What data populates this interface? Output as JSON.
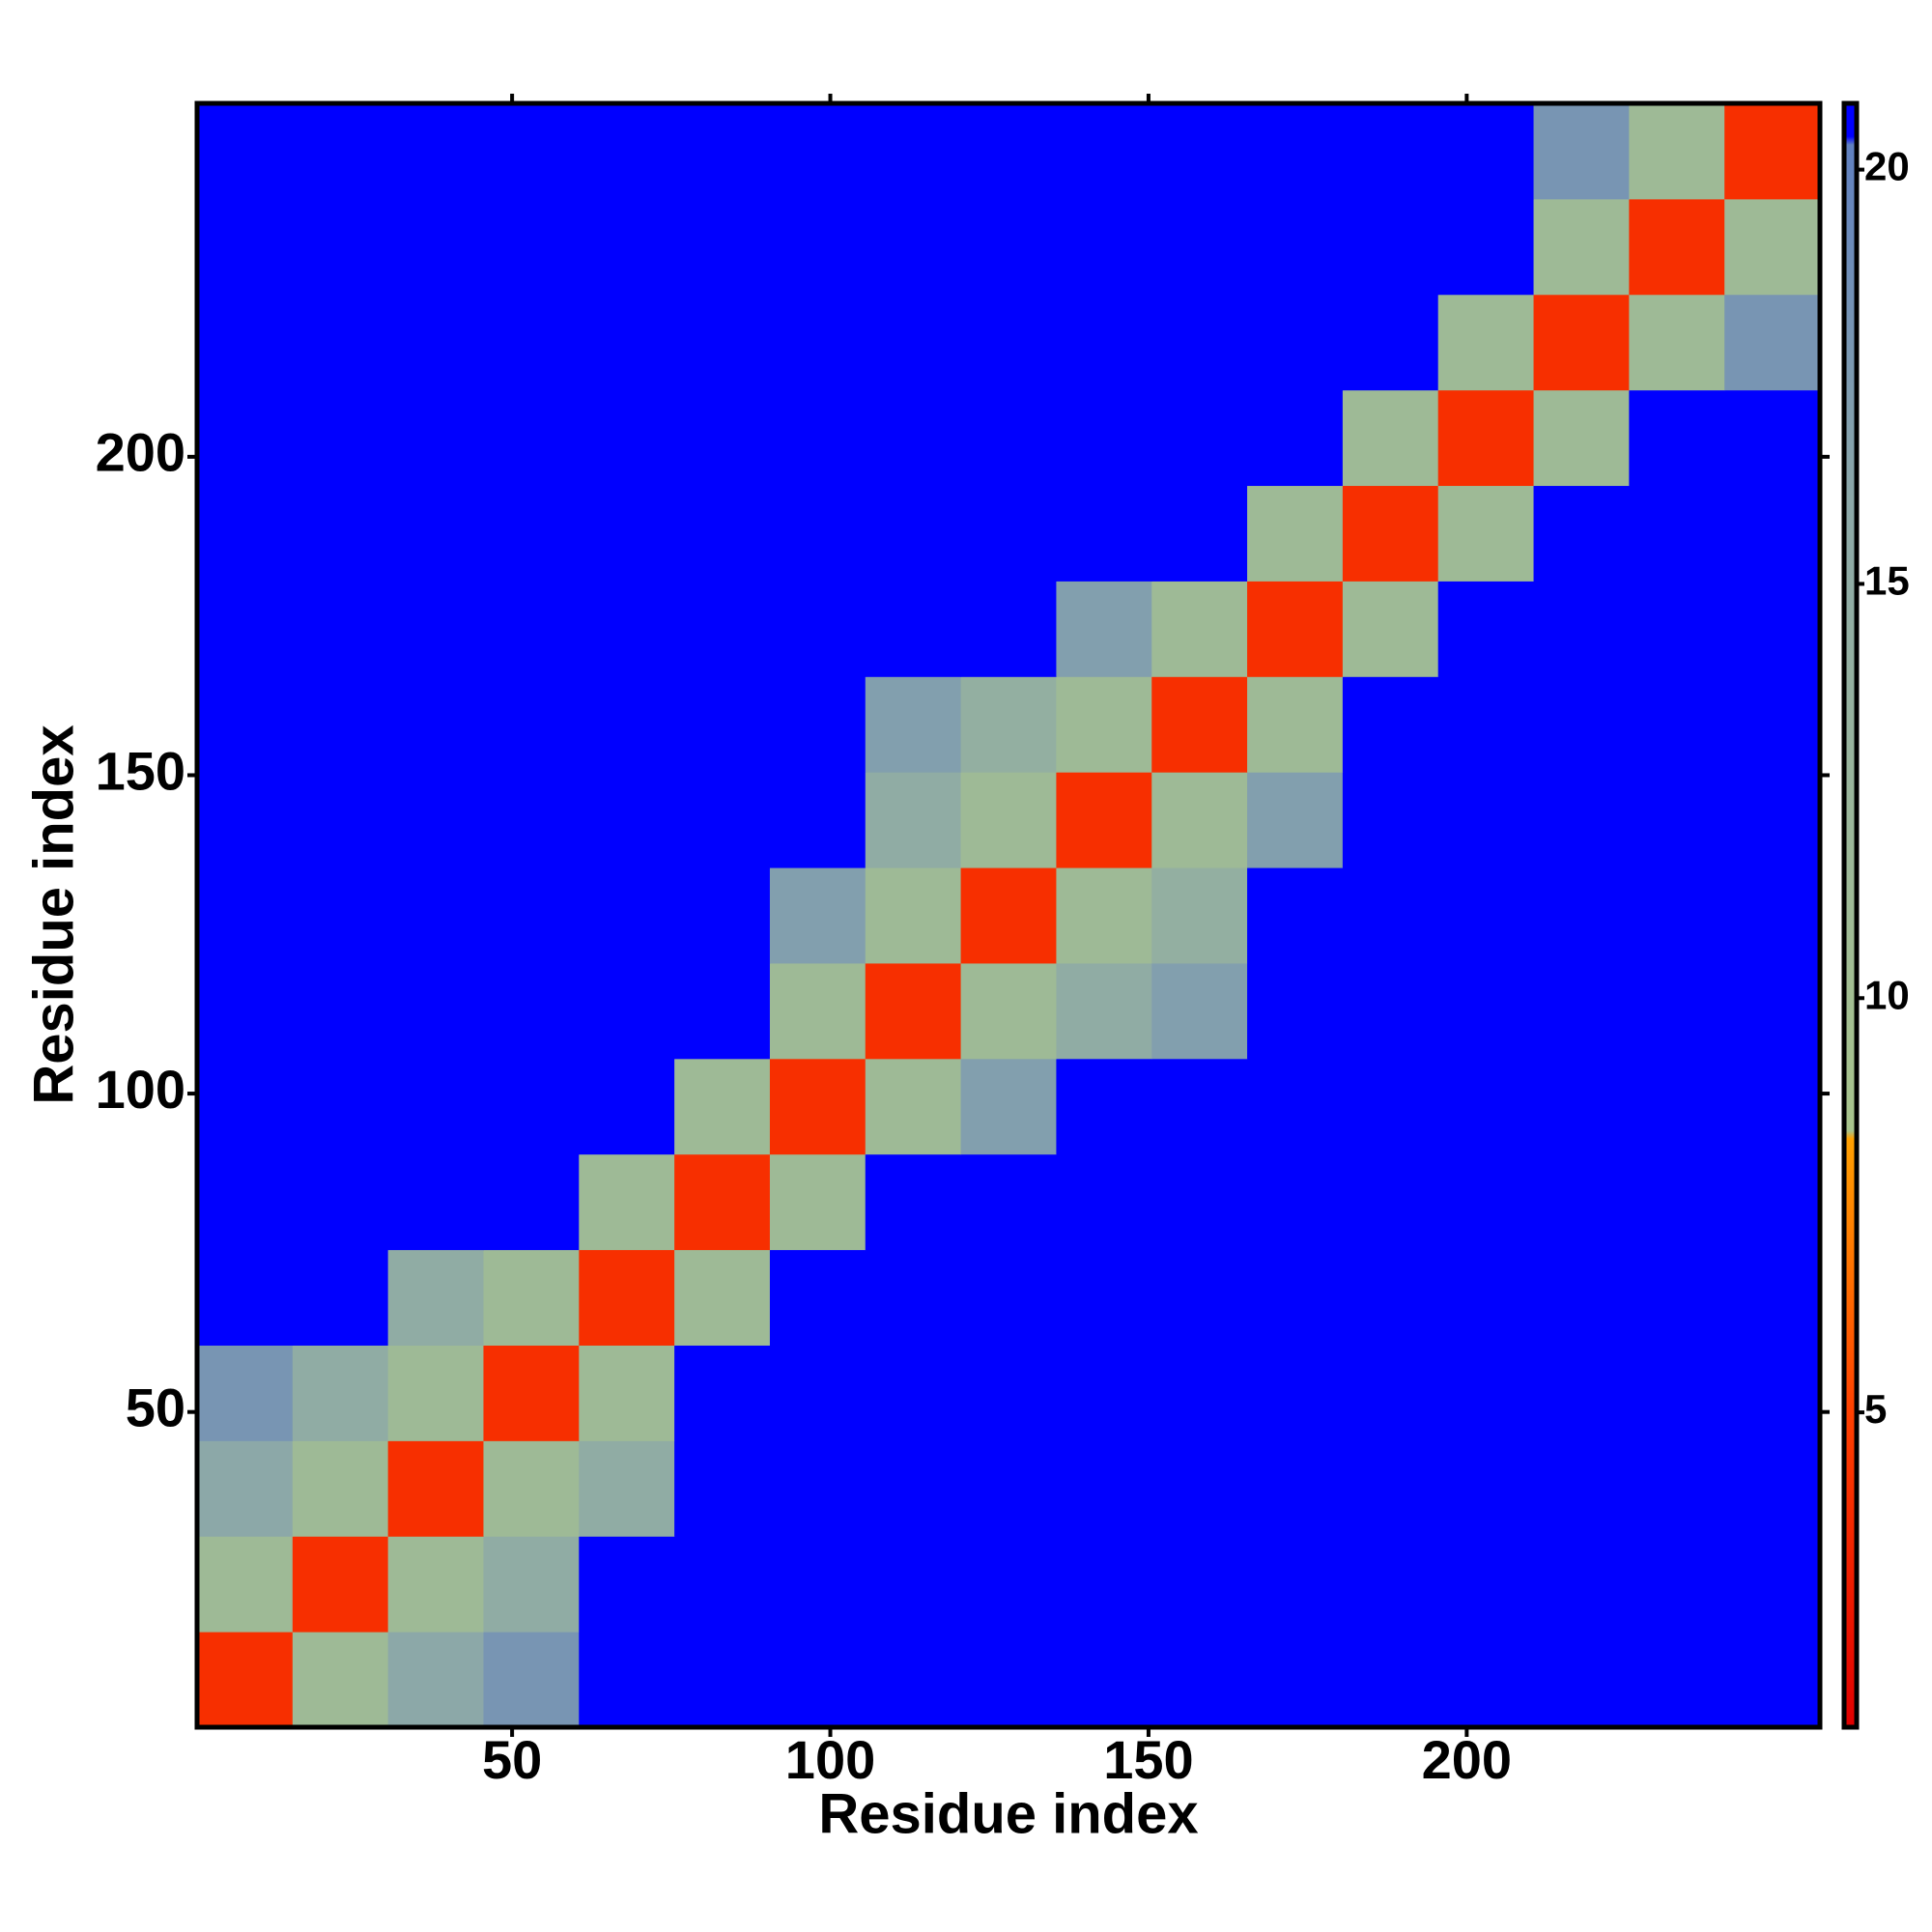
{
  "chart_data": {
    "type": "heatmap",
    "x_label": "Residue index",
    "y_label": "Residue index",
    "bins": [
      0.5,
      15.5,
      30.5,
      45.5,
      60.5,
      75.5,
      90.5,
      105.5,
      120.5,
      135.5,
      150.5,
      165.5,
      180.5,
      195.5,
      210.5,
      225.5,
      240.5,
      255.5
    ],
    "z": [
      [
        4,
        11,
        16,
        18,
        21,
        21,
        21,
        21,
        21,
        21,
        21,
        21,
        21,
        21,
        21,
        21,
        21
      ],
      [
        11,
        4,
        11,
        15,
        21,
        21,
        21,
        21,
        21,
        21,
        21,
        21,
        21,
        21,
        21,
        21,
        21
      ],
      [
        16,
        11,
        4,
        11,
        15,
        21,
        21,
        21,
        21,
        21,
        21,
        21,
        21,
        21,
        21,
        21,
        21
      ],
      [
        18,
        15,
        11,
        4,
        11,
        21,
        21,
        21,
        21,
        21,
        21,
        21,
        21,
        21,
        21,
        21,
        21
      ],
      [
        21,
        21,
        15,
        11,
        4,
        11,
        21,
        21,
        21,
        21,
        21,
        21,
        21,
        21,
        21,
        21,
        21
      ],
      [
        21,
        21,
        21,
        21,
        11,
        4,
        11,
        21,
        21,
        21,
        21,
        21,
        21,
        21,
        21,
        21,
        21
      ],
      [
        21,
        21,
        21,
        21,
        21,
        11,
        4,
        11,
        17,
        21,
        21,
        21,
        21,
        21,
        21,
        21,
        21
      ],
      [
        21,
        21,
        21,
        21,
        21,
        21,
        11,
        4,
        11,
        15,
        17,
        21,
        21,
        21,
        21,
        21,
        21
      ],
      [
        21,
        21,
        21,
        21,
        21,
        21,
        17,
        11,
        4,
        11,
        14,
        21,
        21,
        21,
        21,
        21,
        21
      ],
      [
        21,
        21,
        21,
        21,
        21,
        21,
        21,
        15,
        11,
        4,
        11,
        17,
        21,
        21,
        21,
        21,
        21
      ],
      [
        21,
        21,
        21,
        21,
        21,
        21,
        21,
        17,
        14,
        11,
        4,
        11,
        21,
        21,
        21,
        21,
        21
      ],
      [
        21,
        21,
        21,
        21,
        21,
        21,
        21,
        21,
        21,
        17,
        11,
        4,
        11,
        21,
        21,
        21,
        21
      ],
      [
        21,
        21,
        21,
        21,
        21,
        21,
        21,
        21,
        21,
        21,
        21,
        11,
        4,
        11,
        21,
        21,
        21
      ],
      [
        21,
        21,
        21,
        21,
        21,
        21,
        21,
        21,
        21,
        21,
        21,
        21,
        11,
        4,
        11,
        21,
        21
      ],
      [
        21,
        21,
        21,
        21,
        21,
        21,
        21,
        21,
        21,
        21,
        21,
        21,
        21,
        11,
        4,
        11,
        18
      ],
      [
        21,
        21,
        21,
        21,
        21,
        21,
        21,
        21,
        21,
        21,
        21,
        21,
        21,
        21,
        11,
        4,
        11
      ],
      [
        21,
        21,
        21,
        21,
        21,
        21,
        21,
        21,
        21,
        21,
        21,
        21,
        21,
        21,
        18,
        11,
        4
      ]
    ],
    "xlim": [
      0.5,
      255.5
    ],
    "ylim": [
      0.5,
      255.5
    ],
    "xticks": [
      50,
      100,
      150,
      200
    ],
    "yticks": [
      50,
      100,
      150,
      200
    ],
    "colorbar_lim": [
      1.2,
      20.8
    ],
    "colorbar_ticks": [
      5,
      10,
      15,
      20
    ],
    "colorscale": [
      {
        "value": 1.2,
        "color": "#e00000"
      },
      {
        "value": 5,
        "color": "#ff4000"
      },
      {
        "value": 8.3,
        "color": "#ffa000"
      },
      {
        "value": 8.4,
        "color": "#a8c48c"
      },
      {
        "value": 16,
        "color": "#8ca8a8"
      },
      {
        "value": 20.3,
        "color": "#6080c0"
      },
      {
        "value": 20.4,
        "color": "#0000ff"
      },
      {
        "value": 20.8,
        "color": "#0000ff"
      }
    ]
  }
}
